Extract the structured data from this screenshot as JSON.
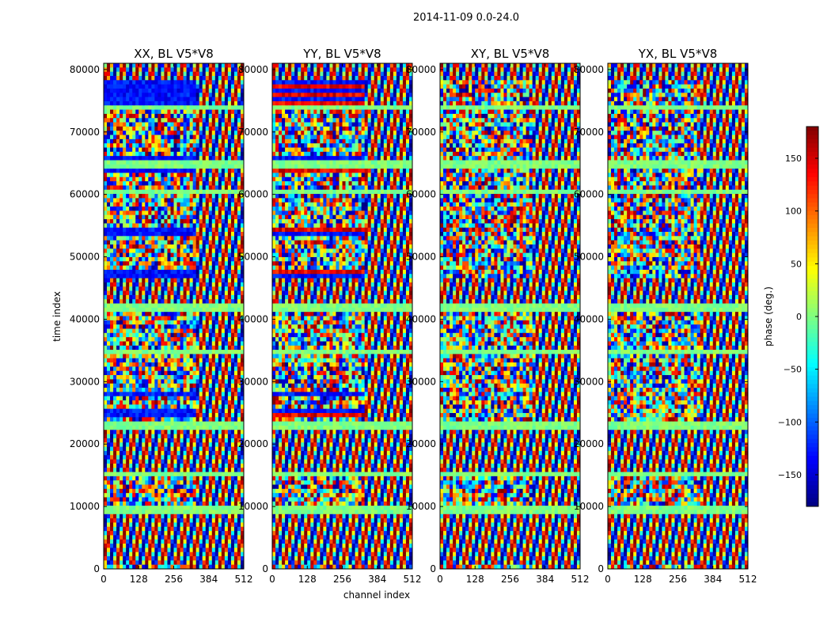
{
  "figure": {
    "suptitle": "2014-11-09 0.0-24.0"
  },
  "chart_data": {
    "type": "heatmap",
    "shared_y_label": "time index",
    "shared_x_label": "channel index",
    "x_range": [
      0,
      512
    ],
    "x_ticks": [
      0,
      128,
      256,
      384,
      512
    ],
    "y_range": [
      0,
      81000
    ],
    "y_ticks": [
      0,
      10000,
      20000,
      30000,
      40000,
      50000,
      60000,
      70000,
      80000
    ],
    "y_tick_labels": [
      "0",
      "10000",
      "20000",
      "30000",
      "40000",
      "50000",
      "60000",
      "70000",
      "80000"
    ],
    "panels": [
      {
        "title": "XX, BL V5*V8",
        "bias": "negative"
      },
      {
        "title": "YY, BL V5*V8",
        "bias": "mixed"
      },
      {
        "title": "XY, BL V5*V8",
        "bias": "none"
      },
      {
        "title": "YX, BL V5*V8",
        "bias": "none"
      }
    ],
    "row_bands": [
      {
        "y0": 0,
        "y1": 800,
        "kind": "noise"
      },
      {
        "y0": 800,
        "y1": 9000,
        "kind": "fringe"
      },
      {
        "y0": 9000,
        "y1": 10200,
        "kind": "flat"
      },
      {
        "y0": 10200,
        "y1": 15000,
        "kind": "noise"
      },
      {
        "y0": 15000,
        "y1": 15800,
        "kind": "flat"
      },
      {
        "y0": 15800,
        "y1": 22500,
        "kind": "fringe"
      },
      {
        "y0": 22500,
        "y1": 23500,
        "kind": "flat"
      },
      {
        "y0": 23500,
        "y1": 24300,
        "kind": "noise"
      },
      {
        "y0": 24300,
        "y1": 25800,
        "kind": "strong"
      },
      {
        "y0": 25800,
        "y1": 27500,
        "kind": "noise"
      },
      {
        "y0": 27500,
        "y1": 28500,
        "kind": "strong"
      },
      {
        "y0": 28500,
        "y1": 34500,
        "kind": "noise"
      },
      {
        "y0": 34500,
        "y1": 35300,
        "kind": "flat"
      },
      {
        "y0": 35300,
        "y1": 41500,
        "kind": "noise"
      },
      {
        "y0": 41500,
        "y1": 42800,
        "kind": "flat"
      },
      {
        "y0": 42800,
        "y1": 46800,
        "kind": "fringe"
      },
      {
        "y0": 46800,
        "y1": 47800,
        "kind": "strong"
      },
      {
        "y0": 47800,
        "y1": 53500,
        "kind": "noise"
      },
      {
        "y0": 53500,
        "y1": 54500,
        "kind": "strong"
      },
      {
        "y0": 54500,
        "y1": 60200,
        "kind": "noise"
      },
      {
        "y0": 60200,
        "y1": 61000,
        "kind": "flat"
      },
      {
        "y0": 61000,
        "y1": 63500,
        "kind": "noise"
      },
      {
        "y0": 63500,
        "y1": 64300,
        "kind": "strong"
      },
      {
        "y0": 64300,
        "y1": 65300,
        "kind": "flat"
      },
      {
        "y0": 65300,
        "y1": 66300,
        "kind": "strong"
      },
      {
        "y0": 66300,
        "y1": 73500,
        "kind": "noise"
      },
      {
        "y0": 73500,
        "y1": 74500,
        "kind": "flat"
      },
      {
        "y0": 74500,
        "y1": 78000,
        "kind": "strong"
      },
      {
        "y0": 78000,
        "y1": 81000,
        "kind": "fringe"
      }
    ],
    "colorbar": {
      "label": "phase (deg.)",
      "range": [
        -180,
        180
      ],
      "ticks": [
        -150,
        -100,
        -50,
        0,
        50,
        100,
        150
      ],
      "tick_labels": [
        "−150",
        "−100",
        "−50",
        "0",
        "50",
        "100",
        "150"
      ],
      "colormap": "jet"
    }
  }
}
